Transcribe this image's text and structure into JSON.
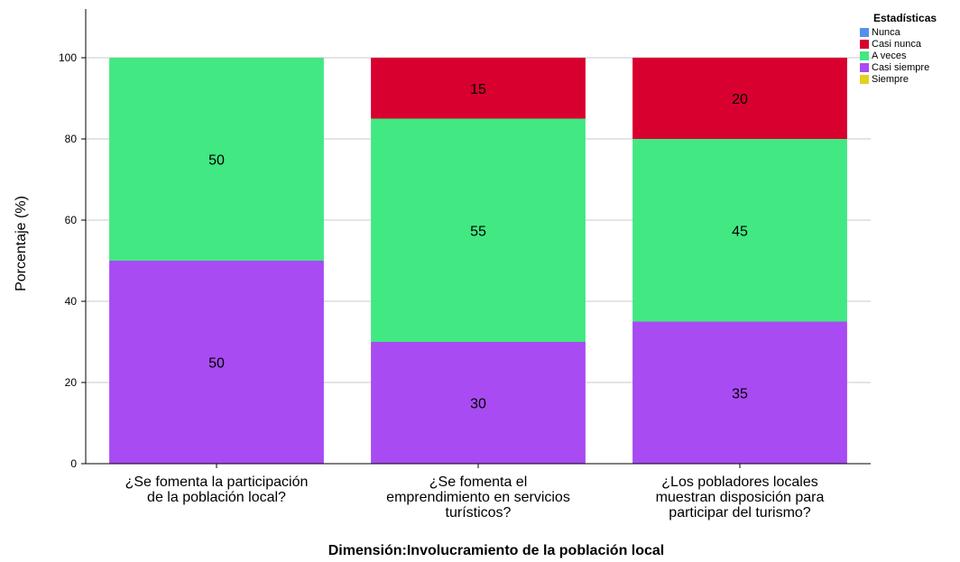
{
  "chart_data": {
    "type": "bar",
    "stacked": true,
    "title": "",
    "xlabel": "Dimensión:Involucramiento de la población local",
    "ylabel": "Porcentaje (%)",
    "ylim": [
      0,
      112
    ],
    "yticks": [
      0,
      20,
      40,
      60,
      80,
      100
    ],
    "grid": "horizontal",
    "legend_position": "top-right",
    "legend_title": "Estadísticas",
    "categories": [
      [
        "¿Se fomenta la participación",
        "de la población local?"
      ],
      [
        "¿Se fomenta el",
        "emprendimiento en servicios",
        "turísticos?"
      ],
      [
        "¿Los pobladores locales",
        "muestran disposición para",
        "participar del turismo?"
      ]
    ],
    "series": [
      {
        "name": "Nunca",
        "color": "#5591ea",
        "values": [
          0,
          0,
          0
        ]
      },
      {
        "name": "Casi nunca",
        "color": "#d8002f",
        "values": [
          0,
          15,
          20
        ]
      },
      {
        "name": "A veces",
        "color": "#42e882",
        "values": [
          50,
          55,
          45
        ]
      },
      {
        "name": "Casi siempre",
        "color": "#a84bf2",
        "values": [
          50,
          30,
          35
        ]
      },
      {
        "name": "Siempre",
        "color": "#e3d01e",
        "values": [
          0,
          0,
          0
        ]
      }
    ],
    "stack_order": [
      "Casi siempre",
      "A veces",
      "Casi nunca",
      "Nunca",
      "Siempre"
    ]
  }
}
